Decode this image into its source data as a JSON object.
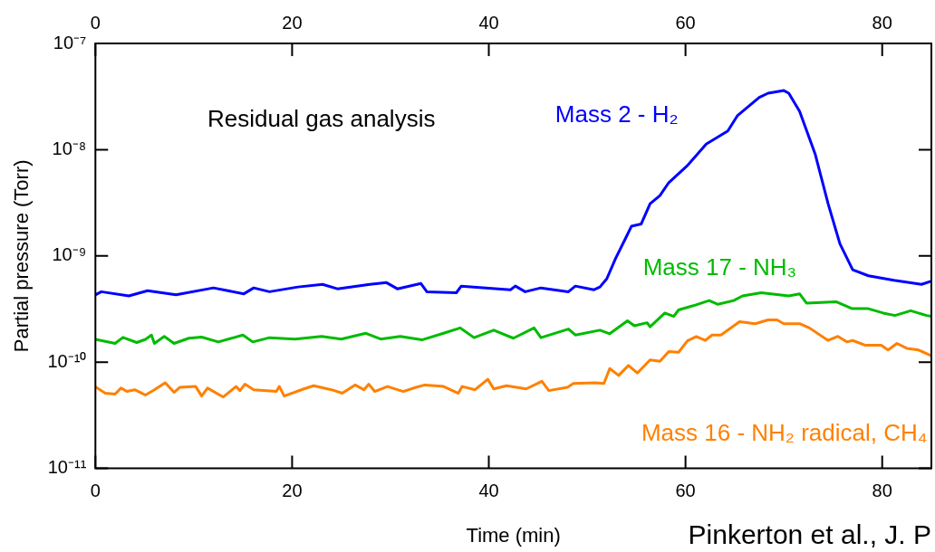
{
  "chart_data": {
    "type": "line",
    "xlabel": "Time (min)",
    "ylabel": "Partial pressure (Torr)",
    "annotations": [
      "Residual gas analysis",
      "Pinkerton et al., J. P"
    ],
    "log": "y",
    "grid": false,
    "legend": false,
    "marker": "none",
    "line_style": "solid",
    "xlim": [
      0,
      85
    ],
    "xticks": [
      0,
      20,
      40,
      60,
      80
    ],
    "x2lim": [
      0,
      85
    ],
    "x2ticks": [
      0,
      20,
      40,
      60,
      80
    ],
    "ylim": [
      1e-11,
      1e-07
    ],
    "yticks": [
      {
        "value": 1e-11,
        "label": "10⁻¹¹"
      },
      {
        "value": 1e-10,
        "label": "10⁻¹⁰"
      },
      {
        "value": 1e-09,
        "label": "10⁻⁹"
      },
      {
        "value": 1e-08,
        "label": "10⁻⁸"
      },
      {
        "value": 1e-07,
        "label": "10⁻⁷"
      }
    ],
    "series": [
      {
        "name": "Mass 2 - H₂",
        "color": "#0000ff",
        "x": [
          0,
          0.6,
          3.4,
          5.3,
          8.2,
          12,
          15.1,
          16.1,
          17.7,
          20.6,
          23.1,
          24.6,
          27.9,
          29.6,
          30.7,
          33.1,
          33.7,
          36.7,
          37.2,
          42.2,
          42.7,
          43.7,
          45.3,
          48.1,
          48.8,
          50.7,
          51.3,
          52.0,
          52.9,
          53.9,
          54.5,
          55.5,
          56.4,
          57.4,
          58.3,
          60.2,
          62.1,
          64.3,
          65.3,
          67.5,
          68.4,
          70.0,
          70.5,
          71.6,
          73.2,
          74.5,
          75.7,
          77.0,
          78.6,
          81.2,
          84.0,
          85
        ],
        "values": [
          4.3e-10,
          4.6e-10,
          4.2e-10,
          4.7e-10,
          4.3e-10,
          5e-10,
          4.4e-10,
          5e-10,
          4.6e-10,
          5.1e-10,
          5.4e-10,
          4.9e-10,
          5.4e-10,
          5.6e-10,
          4.9e-10,
          5.5e-10,
          4.6e-10,
          4.5e-10,
          5.2e-10,
          4.8e-10,
          5.2e-10,
          4.6e-10,
          5e-10,
          4.6e-10,
          5.2e-10,
          4.8e-10,
          5.1e-10,
          6.1e-10,
          9.5e-10,
          1.46e-09,
          1.9e-09,
          2e-09,
          3.1e-09,
          3.7e-09,
          4.9e-09,
          7.1e-09,
          1.13e-08,
          1.5e-08,
          2.1e-08,
          3.1e-08,
          3.4e-08,
          3.6e-08,
          3.4e-08,
          2.3e-08,
          9e-09,
          3.1e-09,
          1.3e-09,
          7.4e-10,
          6.5e-10,
          5.9e-10,
          5.4e-10,
          5.8e-10
        ]
      },
      {
        "name": "Mass 17 - NH₃",
        "color": "#00bb00",
        "x": [
          0,
          2.0,
          2.8,
          4.2,
          5.1,
          5.7,
          6.0,
          7.0,
          8.0,
          9.5,
          10.8,
          12.5,
          15.0,
          16.0,
          17.7,
          20.3,
          23.0,
          25.0,
          27.5,
          29.0,
          31.0,
          33.2,
          35.4,
          37.1,
          38.5,
          40.5,
          42.5,
          44.6,
          45.3,
          48.1,
          48.8,
          51.3,
          52.3,
          54.1,
          54.8,
          56.1,
          56.4,
          57.9,
          58.8,
          59.3,
          60.8,
          62.4,
          63.3,
          64.9,
          65.8,
          67.7,
          68.7,
          70.5,
          71.6,
          72.3,
          75.3,
          76.9,
          78.5,
          80.1,
          81.3,
          82.9,
          84.5,
          85
        ],
        "values": [
          1.64e-10,
          1.5e-10,
          1.71e-10,
          1.53e-10,
          1.64e-10,
          1.8e-10,
          1.5e-10,
          1.75e-10,
          1.5e-10,
          1.68e-10,
          1.72e-10,
          1.55e-10,
          1.8e-10,
          1.55e-10,
          1.7e-10,
          1.65e-10,
          1.75e-10,
          1.65e-10,
          1.87e-10,
          1.65e-10,
          1.75e-10,
          1.62e-10,
          1.87e-10,
          2.1e-10,
          1.7e-10,
          2e-10,
          1.68e-10,
          2.1e-10,
          1.7e-10,
          2.05e-10,
          1.8e-10,
          2e-10,
          1.85e-10,
          2.45e-10,
          2.2e-10,
          2.35e-10,
          2.15e-10,
          2.9e-10,
          2.7e-10,
          3.1e-10,
          3.4e-10,
          3.8e-10,
          3.5e-10,
          3.8e-10,
          4.2e-10,
          4.5e-10,
          4.4e-10,
          4.2e-10,
          4.4e-10,
          3.6e-10,
          3.7e-10,
          3.2e-10,
          3.2e-10,
          2.9e-10,
          2.75e-10,
          3.05e-10,
          2.75e-10,
          2.7e-10
        ]
      },
      {
        "name": "Mass 16 - NH₂ radical, CH₄",
        "color": "#ff8000",
        "x": [
          0,
          1.0,
          2.0,
          2.6,
          3.2,
          4.0,
          5.1,
          6.0,
          7.1,
          8.0,
          8.6,
          10.2,
          10.8,
          11.4,
          13.0,
          14.3,
          14.7,
          15.2,
          16.1,
          18.4,
          18.7,
          19.2,
          21.2,
          22.2,
          24.0,
          25.1,
          26.4,
          27.3,
          27.8,
          28.4,
          29.7,
          31.3,
          32.6,
          33.5,
          35.4,
          36.9,
          37.3,
          38.6,
          39.9,
          40.5,
          41.8,
          43.8,
          45.4,
          46.1,
          48.0,
          48.6,
          50.8,
          51.7,
          52.3,
          53.2,
          54.2,
          55.1,
          56.4,
          57.4,
          58.3,
          59.3,
          60.2,
          61.1,
          62.0,
          62.7,
          63.6,
          65.5,
          67.1,
          68.4,
          69.3,
          70.0,
          71.6,
          72.6,
          74.5,
          75.5,
          76.4,
          77.0,
          78.3,
          79.9,
          80.6,
          81.5,
          82.5,
          83.7,
          85
        ],
        "values": [
          5.85e-11,
          5.1e-11,
          5e-11,
          5.7e-11,
          5.3e-11,
          5.5e-11,
          4.9e-11,
          5.5e-11,
          6.4e-11,
          5.2e-11,
          5.8e-11,
          5.9e-11,
          4.8e-11,
          5.7e-11,
          4.7e-11,
          5.9e-11,
          5.4e-11,
          6.2e-11,
          5.5e-11,
          5.3e-11,
          5.9e-11,
          4.8e-11,
          5.6e-11,
          6e-11,
          5.5e-11,
          5.1e-11,
          6.1e-11,
          5.5e-11,
          6.2e-11,
          5.3e-11,
          5.9e-11,
          5.3e-11,
          5.8e-11,
          6.1e-11,
          5.9e-11,
          5.1e-11,
          5.9e-11,
          5.5e-11,
          6.9e-11,
          5.6e-11,
          6e-11,
          5.6e-11,
          6.6e-11,
          5.4e-11,
          5.8e-11,
          6.3e-11,
          6.4e-11,
          6.3e-11,
          8.7e-11,
          7.5e-11,
          9.3e-11,
          7.9e-11,
          1.05e-10,
          1.02e-10,
          1.26e-10,
          1.24e-10,
          1.59e-10,
          1.74e-10,
          1.6e-10,
          1.8e-10,
          1.8e-10,
          2.4e-10,
          2.3e-10,
          2.5e-10,
          2.5e-10,
          2.3e-10,
          2.3e-10,
          2.1e-10,
          1.6e-10,
          1.75e-10,
          1.55e-10,
          1.6e-10,
          1.44e-10,
          1.44e-10,
          1.3e-10,
          1.5e-10,
          1.35e-10,
          1.3e-10,
          1.15e-10
        ]
      }
    ]
  }
}
